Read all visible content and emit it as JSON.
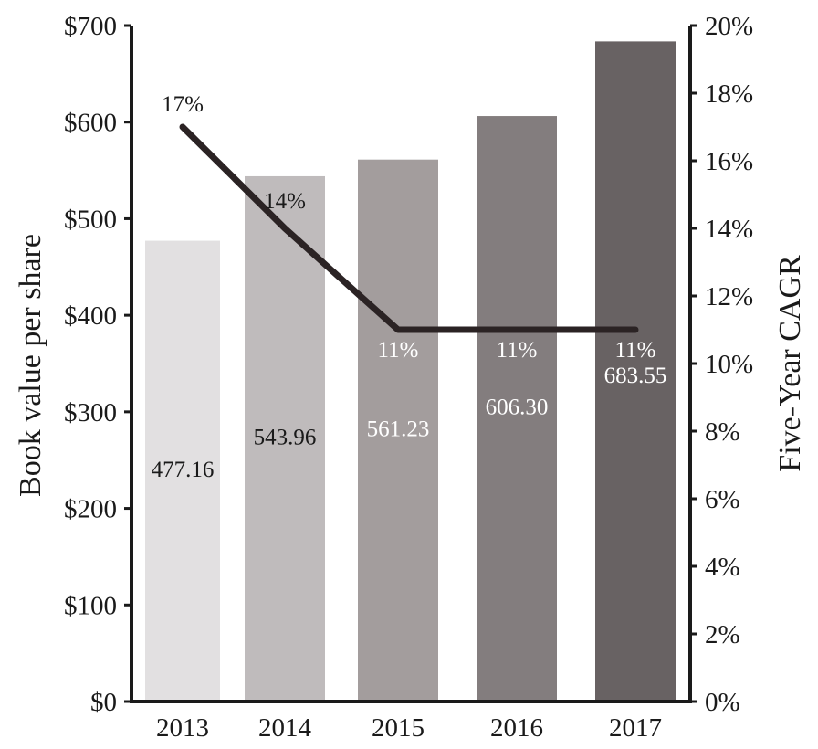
{
  "chart_data": {
    "type": "bar+line",
    "categories": [
      "2013",
      "2014",
      "2015",
      "2016",
      "2017"
    ],
    "bars": {
      "name": "Book value per share",
      "values": [
        477.16,
        543.96,
        561.23,
        606.3,
        683.55
      ],
      "labels": [
        "477.16",
        "543.96",
        "561.23",
        "606.30",
        "683.55"
      ],
      "colors": [
        "#e2e0e1",
        "#bfbbbc",
        "#a39d9d",
        "#837d7e",
        "#686263"
      ],
      "label_colors": [
        "#1a1a1a",
        "#1a1a1a",
        "#ffffff",
        "#ffffff",
        "#ffffff"
      ]
    },
    "line": {
      "name": "Five-Year CAGR",
      "values": [
        17,
        14,
        11,
        11,
        11
      ],
      "labels": [
        "17%",
        "14%",
        "11%",
        "11%",
        "11%"
      ],
      "color": "#2b2324",
      "label_colors": [
        "#1a1a1a",
        "#1a1a1a",
        "#ffffff",
        "#ffffff",
        "#ffffff"
      ]
    },
    "y_left": {
      "label": "Book value per share",
      "min": 0,
      "max": 700,
      "ticks": [
        "$0",
        "$100",
        "$200",
        "$300",
        "$400",
        "$500",
        "$600",
        "$700"
      ]
    },
    "y_right": {
      "label": "Five-Year CAGR",
      "min": 0,
      "max": 20,
      "ticks": [
        "0%",
        "2%",
        "4%",
        "6%",
        "8%",
        "10%",
        "12%",
        "14%",
        "16%",
        "18%",
        "20%"
      ]
    },
    "xlabel": "",
    "grid": false,
    "legend": "none"
  }
}
